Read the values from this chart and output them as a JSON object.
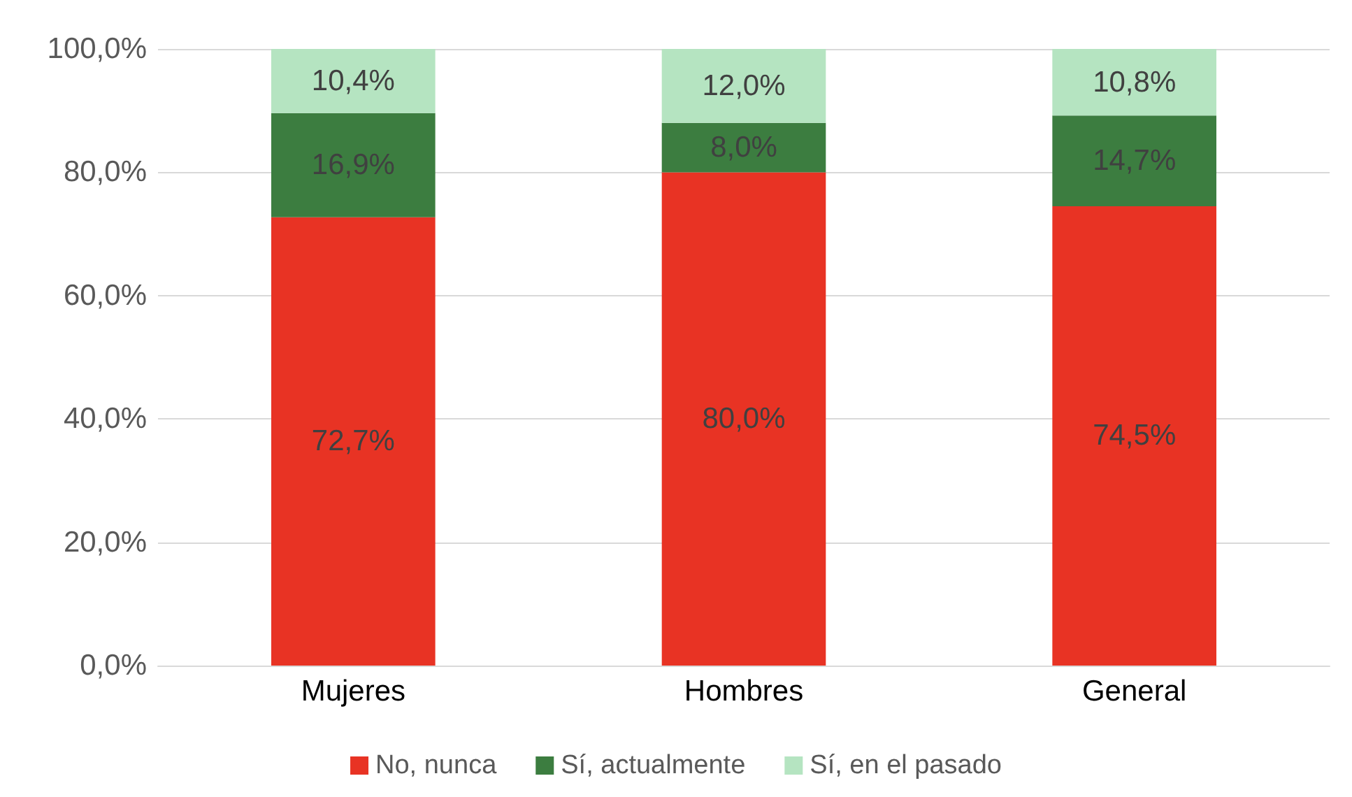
{
  "chart_data": {
    "type": "bar",
    "stacked": true,
    "categories": [
      "Mujeres",
      "Hombres",
      "General"
    ],
    "series": [
      {
        "name": "No, nunca",
        "color": "#e83324",
        "values": [
          72.7,
          80.0,
          74.5
        ],
        "value_labels": [
          "72,7%",
          "80,0%",
          "74,5%"
        ]
      },
      {
        "name": "Sí, actualmente",
        "color": "#3c7d40",
        "values": [
          16.9,
          8.0,
          14.7
        ],
        "value_labels": [
          "16,9%",
          "8,0%",
          "14,7%"
        ]
      },
      {
        "name": "Sí, en el pasado",
        "color": "#b5e4c1",
        "values": [
          10.4,
          12.0,
          10.8
        ],
        "value_labels": [
          "10,4%",
          "12,0%",
          "10,8%"
        ]
      }
    ],
    "ylim": [
      0,
      100
    ],
    "yticks": [
      {
        "value": 0,
        "label": "0,0%"
      },
      {
        "value": 20,
        "label": "20,0%"
      },
      {
        "value": 40,
        "label": "40,0%"
      },
      {
        "value": 60,
        "label": "60,0%"
      },
      {
        "value": 80,
        "label": "80,0%"
      },
      {
        "value": 100,
        "label": "100,0%"
      }
    ],
    "grid": "y",
    "legend": "bottom"
  }
}
